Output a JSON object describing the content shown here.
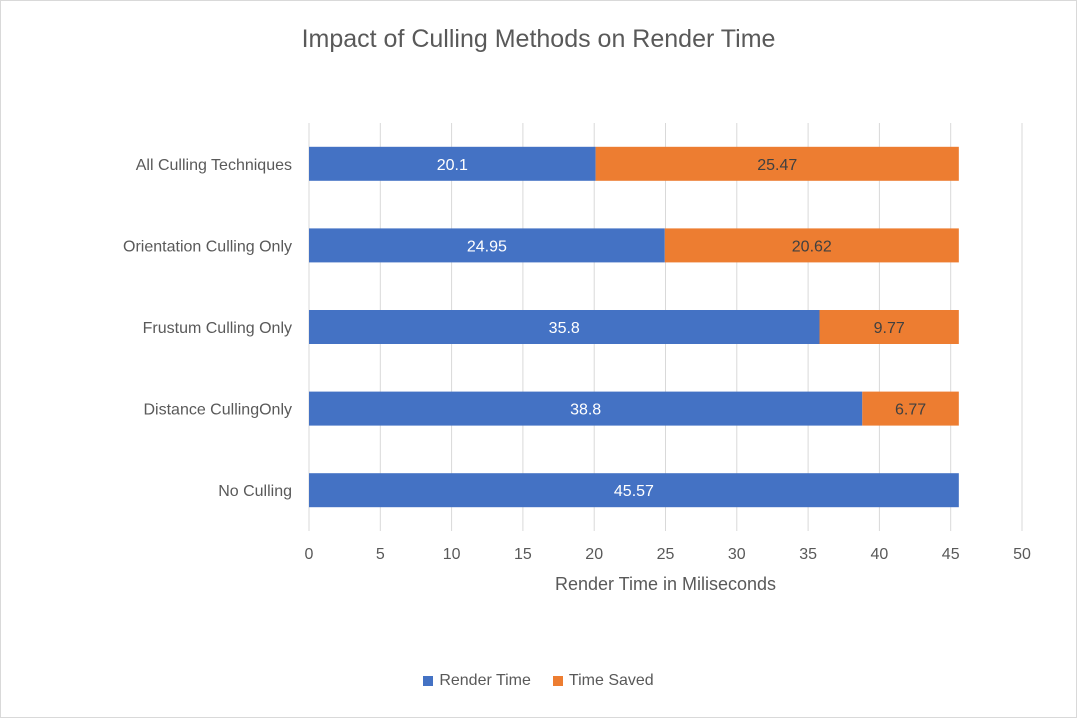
{
  "chart_data": {
    "type": "bar",
    "orientation": "horizontal",
    "stacked": true,
    "title": "Impact of Culling Methods on Render Time",
    "xlabel": "Render Time in Miliseconds",
    "ylabel": "",
    "xlim": [
      0,
      50
    ],
    "xticks": [
      0,
      5,
      10,
      15,
      20,
      25,
      30,
      35,
      40,
      45,
      50
    ],
    "grid": "vertical",
    "legend_position": "bottom",
    "categories": [
      "All Culling Techniques",
      "Orientation Culling Only",
      "Frustum Culling Only",
      "Distance CullingOnly",
      "No Culling"
    ],
    "series": [
      {
        "name": "Render Time",
        "color": "#4472c4",
        "label_color": "#ffffff",
        "values": [
          20.1,
          24.95,
          35.8,
          38.8,
          45.57
        ]
      },
      {
        "name": "Time Saved",
        "color": "#ed7d31",
        "label_color": "#404040",
        "values": [
          25.47,
          20.62,
          9.77,
          6.77,
          null
        ]
      }
    ]
  }
}
